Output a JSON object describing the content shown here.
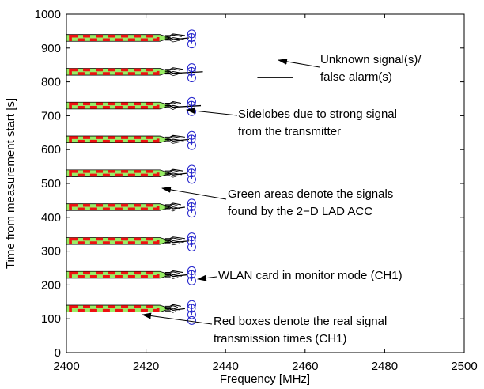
{
  "chart_data": {
    "type": "scatter",
    "title": "",
    "xlabel": "Frequency [MHz]",
    "ylabel": "Time from measurement start [s]",
    "xlim": [
      2400,
      2500
    ],
    "ylim": [
      0,
      1000
    ],
    "xticks": [
      "2400",
      "2420",
      "2440",
      "2460",
      "2480",
      "2500"
    ],
    "yticks": [
      "0",
      "100",
      "200",
      "300",
      "400",
      "500",
      "600",
      "700",
      "800",
      "900",
      "1000"
    ],
    "grid": false,
    "legend": "none",
    "colors": {
      "green_area_fill": "#99ee66",
      "red_box": "#ee1111",
      "circle": "#2222cc",
      "line": "#000000"
    },
    "bursts": [
      {
        "t0": 120,
        "t1": 140
      },
      {
        "t0": 220,
        "t1": 240
      },
      {
        "t0": 320,
        "t1": 340
      },
      {
        "t0": 420,
        "t1": 440
      },
      {
        "t0": 520,
        "t1": 540
      },
      {
        "t0": 620,
        "t1": 640
      },
      {
        "t0": 720,
        "t1": 740
      },
      {
        "t0": 820,
        "t1": 840
      },
      {
        "t0": 920,
        "t1": 940
      }
    ],
    "green_area_freq": [
      2400,
      2426
    ],
    "red_box_freq": [
      2401,
      2423
    ],
    "circle_freq": 2431.5,
    "false_alarm_line": {
      "x": [
        2448,
        2457
      ],
      "y": 813
    },
    "annotations": [
      {
        "name": "annotation-unknown-signal",
        "lines": [
          "Unknown signal(s)/",
          "false alarm(s)"
        ]
      },
      {
        "name": "annotation-sidelobes",
        "lines": [
          "Sidelobes due to strong signal",
          "from the transmitter"
        ]
      },
      {
        "name": "annotation-green-areas",
        "lines": [
          "Green areas denote the signals",
          "found by the 2−D LAD ACC"
        ]
      },
      {
        "name": "annotation-wlan-card",
        "lines": [
          "WLAN card in monitor mode (CH1)"
        ]
      },
      {
        "name": "annotation-red-boxes",
        "lines": [
          "Red boxes denote the real signal",
          "transmission times (CH1)"
        ]
      }
    ]
  }
}
